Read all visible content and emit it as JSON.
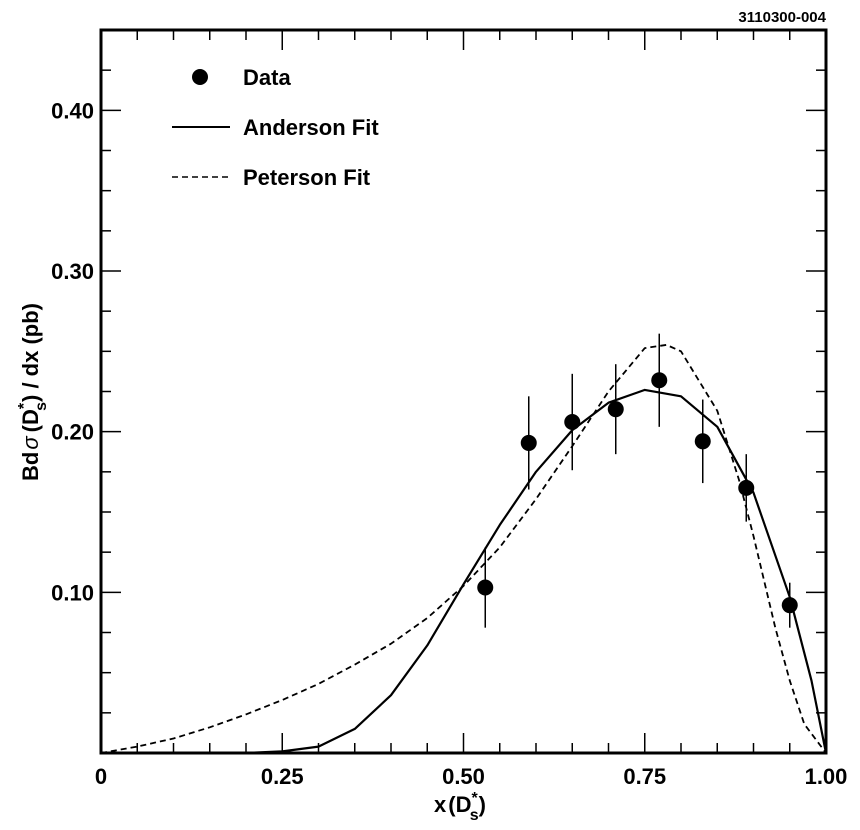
{
  "figure_id": "3110300-004",
  "chart_data": {
    "type": "scatter",
    "title": "",
    "xlabel": "x",
    "xlabel_sym": "(D",
    "xlabel_sup": "*",
    "xlabel_sub": "s",
    "xlabel_close": ")",
    "ylabel": "Bd",
    "ylabel_sigma": "σ",
    "ylabel_mid": "(D",
    "ylabel_sup": "*",
    "ylabel_sub": "s",
    "ylabel_end": ") / dx (pb)",
    "xlim": [
      0,
      1.0
    ],
    "ylim": [
      0,
      0.45
    ],
    "x_ticks": [
      {
        "v": 0,
        "label": "0"
      },
      {
        "v": 0.25,
        "label": "0.25"
      },
      {
        "v": 0.5,
        "label": "0.50"
      },
      {
        "v": 0.75,
        "label": "0.75"
      },
      {
        "v": 1.0,
        "label": "1.00"
      }
    ],
    "y_ticks": [
      {
        "v": 0.1,
        "label": "0.10"
      },
      {
        "v": 0.2,
        "label": "0.20"
      },
      {
        "v": 0.3,
        "label": "0.30"
      },
      {
        "v": 0.4,
        "label": "0.40"
      }
    ],
    "legend_position": "top-left",
    "series": [
      {
        "name": "Data",
        "kind": "points",
        "x": [
          0.53,
          0.59,
          0.65,
          0.71,
          0.77,
          0.83,
          0.89,
          0.95
        ],
        "y": [
          0.103,
          0.193,
          0.206,
          0.214,
          0.232,
          0.194,
          0.165,
          0.092
        ],
        "err": [
          0.025,
          0.029,
          0.03,
          0.028,
          0.029,
          0.026,
          0.021,
          0.014
        ]
      },
      {
        "name": "Anderson Fit",
        "kind": "line",
        "style": "solid",
        "x": [
          0.0,
          0.2,
          0.25,
          0.3,
          0.35,
          0.4,
          0.45,
          0.5,
          0.55,
          0.6,
          0.65,
          0.7,
          0.75,
          0.8,
          0.85,
          0.9,
          0.95,
          0.98,
          1.0
        ],
        "y": [
          0.0,
          0.0,
          0.001,
          0.004,
          0.015,
          0.036,
          0.067,
          0.105,
          0.142,
          0.175,
          0.201,
          0.218,
          0.226,
          0.222,
          0.203,
          0.162,
          0.097,
          0.045,
          0.0
        ]
      },
      {
        "name": "Peterson Fit",
        "kind": "line",
        "style": "dashed",
        "x": [
          0.0,
          0.05,
          0.1,
          0.15,
          0.2,
          0.25,
          0.3,
          0.35,
          0.4,
          0.45,
          0.5,
          0.55,
          0.6,
          0.65,
          0.7,
          0.75,
          0.78,
          0.8,
          0.85,
          0.88,
          0.9,
          0.93,
          0.95,
          0.97,
          1.0
        ],
        "y": [
          0.0,
          0.004,
          0.009,
          0.016,
          0.024,
          0.033,
          0.043,
          0.055,
          0.068,
          0.084,
          0.104,
          0.128,
          0.158,
          0.191,
          0.225,
          0.252,
          0.254,
          0.25,
          0.213,
          0.17,
          0.135,
          0.078,
          0.045,
          0.018,
          0.0
        ]
      }
    ]
  }
}
